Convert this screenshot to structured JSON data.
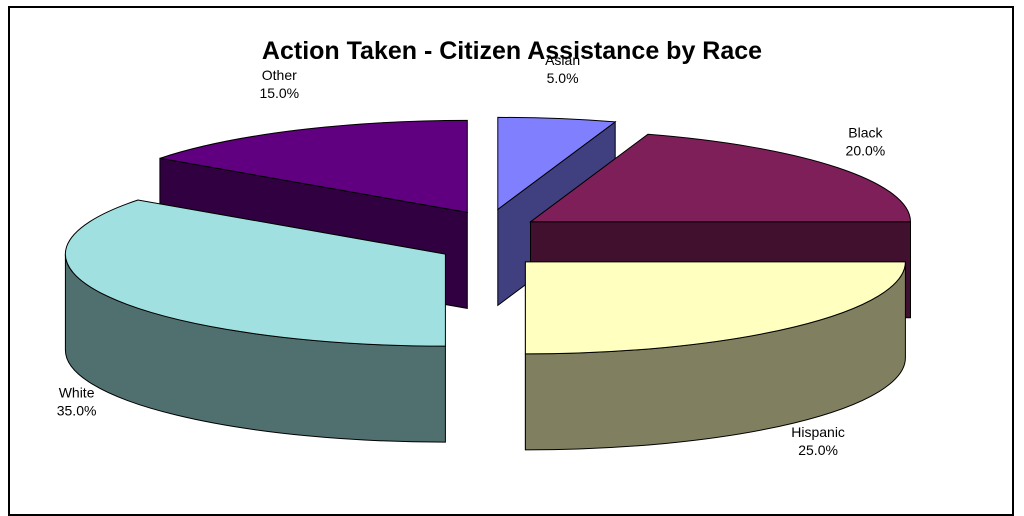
{
  "chart_data": {
    "type": "pie",
    "title": "Action Taken - Citizen Assistance by Race",
    "slices": [
      {
        "label": "Asian",
        "value": 5.0,
        "pct_label": "5.0%",
        "top_color": "#8080ff",
        "side_color": "#404080"
      },
      {
        "label": "Black",
        "value": 20.0,
        "pct_label": "20.0%",
        "top_color": "#7f1f5a",
        "side_color": "#40102e"
      },
      {
        "label": "Hispanic",
        "value": 25.0,
        "pct_label": "25.0%",
        "top_color": "#ffffc0",
        "side_color": "#808060"
      },
      {
        "label": "White",
        "value": 35.0,
        "pct_label": "35.0%",
        "top_color": "#a0e0e0",
        "side_color": "#507070"
      },
      {
        "label": "Other",
        "value": 15.0,
        "pct_label": "15.0%",
        "top_color": "#600080",
        "side_color": "#300040"
      }
    ],
    "style": "3d-exploded-pie",
    "legend": "none",
    "edge_color": "#000000"
  }
}
